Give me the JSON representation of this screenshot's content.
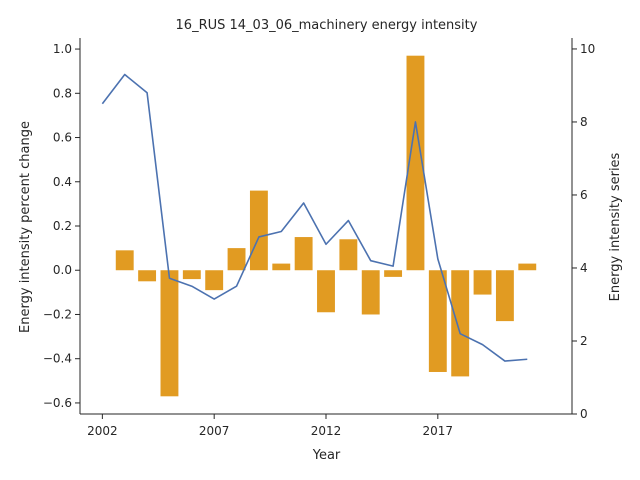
{
  "chart_data": {
    "type": "bar+line",
    "title": "16_RUS 14_03_06_machinery energy intensity",
    "xlabel": "Year",
    "ylabel_left": "Energy intensity percent change",
    "ylabel_right": "Energy intensity series",
    "xlim": [
      2001.0,
      2023.0
    ],
    "ylim_left": [
      -0.65,
      1.05
    ],
    "ylim_right": [
      0,
      10.3
    ],
    "x_ticks": [
      2002,
      2007,
      2012,
      2017
    ],
    "y_left_ticks": [
      -0.6,
      -0.4,
      -0.2,
      0.0,
      0.2,
      0.4,
      0.6,
      0.8,
      1.0
    ],
    "y_left_tick_labels": [
      "−0.6",
      "−0.4",
      "−0.2",
      "0.0",
      "0.2",
      "0.4",
      "0.6",
      "0.8",
      "1.0"
    ],
    "y_right_ticks": [
      0,
      2,
      4,
      6,
      8,
      10
    ],
    "bar_color": "#e19b22",
    "line_color": "#4c72b0",
    "bars": {
      "name": "Energy intensity percent change",
      "x": [
        2003,
        2004,
        2005,
        2006,
        2007,
        2008,
        2009,
        2010,
        2011,
        2012,
        2013,
        2014,
        2015,
        2016,
        2017,
        2018,
        2019,
        2020,
        2021
      ],
      "values": [
        0.09,
        -0.05,
        -0.57,
        -0.04,
        -0.09,
        0.1,
        0.36,
        0.03,
        0.15,
        -0.19,
        0.14,
        -0.2,
        -0.03,
        0.97,
        -0.46,
        -0.48,
        -0.11,
        -0.23,
        0.03
      ]
    },
    "line": {
      "name": "Energy intensity series",
      "x": [
        2002,
        2003,
        2004,
        2005,
        2006,
        2007,
        2008,
        2009,
        2010,
        2011,
        2012,
        2013,
        2014,
        2015,
        2016,
        2017,
        2018,
        2019,
        2020,
        2021
      ],
      "values": [
        8.5,
        9.3,
        8.8,
        3.72,
        3.5,
        3.15,
        3.5,
        4.85,
        5.0,
        5.78,
        4.65,
        5.3,
        4.2,
        4.05,
        8.0,
        4.25,
        2.2,
        1.9,
        1.45,
        1.5
      ]
    }
  }
}
